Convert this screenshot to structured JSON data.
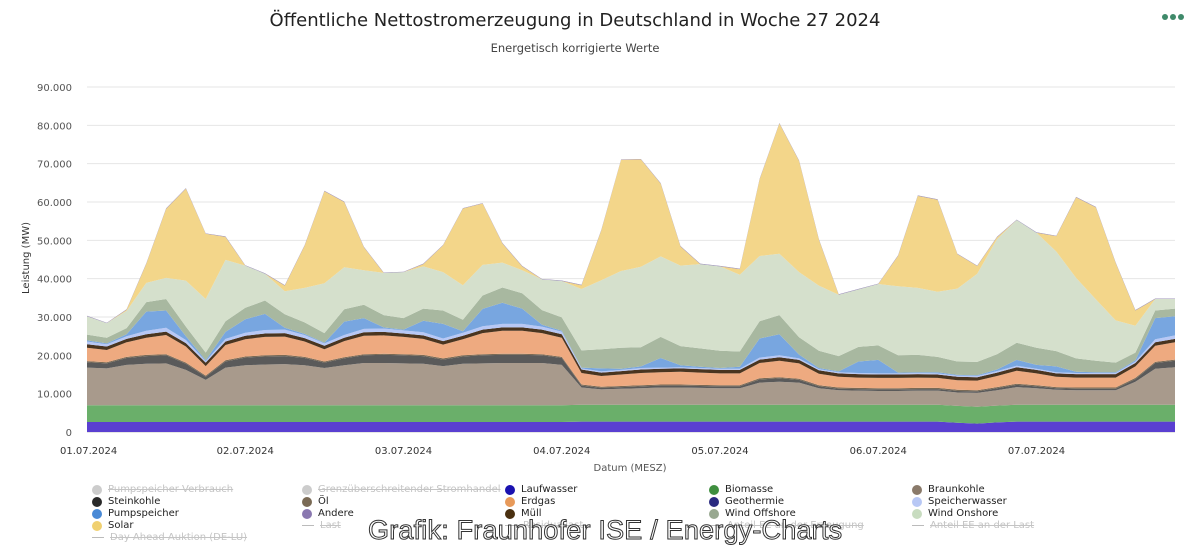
{
  "header": {
    "title": "Öffentliche Nettostromerzeugung in Deutschland in Woche 27 2024",
    "subtitle": "Energetisch korrigierte Werte",
    "menu_icon": "more-dots-icon"
  },
  "watermark": "Grafik: Fraunhofer ISE / Energy-Charts",
  "chart_data": {
    "type": "area",
    "stacked": true,
    "title": "Öffentliche Nettostromerzeugung in Deutschland in Woche 27 2024",
    "subtitle": "Energetisch korrigierte Werte",
    "xlabel": "Datum (MESZ)",
    "ylabel": "Leistung (MW)",
    "ylim": [
      0,
      90000
    ],
    "yticks": [
      0,
      10000,
      20000,
      30000,
      40000,
      50000,
      60000,
      70000,
      80000,
      90000
    ],
    "ytick_labels": [
      "0",
      "10.000",
      "20.000",
      "30.000",
      "40.000",
      "50.000",
      "60.000",
      "70.000",
      "80.000",
      "90.000"
    ],
    "x_unit": "hours since 01.07.2024 00:00",
    "xlim": [
      0,
      165
    ],
    "xticks": [
      0,
      24,
      48,
      72,
      96,
      120,
      144
    ],
    "xtick_labels": [
      "01.07.2024",
      "02.07.2024",
      "03.07.2024",
      "04.07.2024",
      "05.07.2024",
      "06.07.2024",
      "07.07.2024"
    ],
    "grid": true,
    "legend_position": "bottom",
    "x": [
      0,
      3,
      6,
      9,
      12,
      15,
      18,
      21,
      24,
      27,
      30,
      33,
      36,
      39,
      42,
      45,
      48,
      51,
      54,
      57,
      60,
      63,
      66,
      69,
      72,
      75,
      78,
      81,
      84,
      87,
      90,
      93,
      96,
      99,
      102,
      105,
      108,
      111,
      114,
      117,
      120,
      123,
      126,
      129,
      132,
      135,
      138,
      141,
      144,
      147,
      150,
      153,
      156,
      159,
      162,
      165
    ],
    "series": [
      {
        "name": "Laufwasser",
        "color": "#5a3fd1",
        "values": [
          2600,
          2600,
          2600,
          2600,
          2600,
          2600,
          2600,
          2600,
          2600,
          2600,
          2600,
          2600,
          2600,
          2600,
          2600,
          2600,
          2600,
          2600,
          2600,
          2600,
          2600,
          2600,
          2600,
          2600,
          2600,
          2700,
          2700,
          2700,
          2700,
          2700,
          2700,
          2700,
          2700,
          2700,
          2700,
          2700,
          2700,
          2700,
          2700,
          2700,
          2700,
          2700,
          2700,
          2700,
          2400,
          2200,
          2500,
          2700,
          2700,
          2700,
          2700,
          2700,
          2700,
          2700,
          2700,
          2700
        ]
      },
      {
        "name": "Biomasse",
        "color": "#6aaf6a",
        "values": [
          4400,
          4400,
          4400,
          4400,
          4400,
          4400,
          4400,
          4400,
          4400,
          4400,
          4400,
          4400,
          4400,
          4400,
          4400,
          4400,
          4400,
          4400,
          4400,
          4400,
          4400,
          4400,
          4400,
          4400,
          4400,
          4400,
          4400,
          4400,
          4400,
          4400,
          4400,
          4400,
          4400,
          4400,
          4400,
          4400,
          4400,
          4400,
          4400,
          4400,
          4400,
          4400,
          4400,
          4400,
          4400,
          4400,
          4400,
          4400,
          4400,
          4400,
          4400,
          4400,
          4400,
          4400,
          4400,
          4400
        ]
      },
      {
        "name": "Braunkohle",
        "color": "#a89a8c",
        "values": [
          9800,
          9600,
          10500,
          10800,
          10900,
          9200,
          6600,
          9800,
          10400,
          10600,
          10700,
          10400,
          9700,
          10400,
          11000,
          11000,
          10900,
          10800,
          10200,
          10800,
          10900,
          11000,
          11000,
          11000,
          10500,
          4500,
          4000,
          4200,
          4300,
          4500,
          4500,
          4400,
          4300,
          4300,
          5800,
          6000,
          5800,
          4300,
          3800,
          3700,
          3600,
          3600,
          3700,
          3700,
          3500,
          3600,
          4000,
          4600,
          4300,
          3900,
          3800,
          3800,
          3800,
          6000,
          9400,
          9800
        ]
      },
      {
        "name": "Steinkohle",
        "color": "#5a5a5a",
        "values": [
          1400,
          1300,
          1800,
          2000,
          2100,
          1600,
          800,
          1600,
          2000,
          2100,
          2100,
          1900,
          1400,
          1800,
          2000,
          2100,
          2100,
          2000,
          1700,
          1900,
          2100,
          2100,
          2100,
          2000,
          1800,
          500,
          400,
          400,
          500,
          500,
          500,
          500,
          500,
          500,
          800,
          900,
          700,
          500,
          400,
          400,
          400,
          400,
          400,
          400,
          400,
          400,
          500,
          600,
          500,
          400,
          400,
          400,
          400,
          700,
          1500,
          1700
        ]
      },
      {
        "name": "Öl",
        "color": "#7a6a55",
        "values": [
          300,
          300,
          300,
          300,
          300,
          300,
          300,
          300,
          300,
          300,
          300,
          300,
          300,
          300,
          300,
          300,
          300,
          300,
          300,
          300,
          300,
          300,
          300,
          300,
          300,
          300,
          300,
          300,
          300,
          300,
          300,
          300,
          300,
          300,
          300,
          300,
          300,
          300,
          300,
          300,
          300,
          300,
          300,
          300,
          300,
          300,
          300,
          300,
          300,
          300,
          300,
          300,
          300,
          300,
          300,
          300
        ]
      },
      {
        "name": "Erdgas",
        "color": "#eeaa80",
        "values": [
          3500,
          3200,
          3800,
          4500,
          5000,
          4200,
          2500,
          4000,
          4500,
          4800,
          4800,
          4000,
          3200,
          4200,
          4800,
          4800,
          4500,
          4200,
          3600,
          4200,
          5500,
          6000,
          6000,
          5500,
          5000,
          3000,
          2800,
          3000,
          3200,
          3200,
          3300,
          3200,
          3100,
          3100,
          4000,
          4300,
          4000,
          3000,
          2800,
          2700,
          2700,
          2700,
          2700,
          2600,
          2500,
          2500,
          2900,
          3400,
          3100,
          2700,
          2600,
          2600,
          2600,
          3000,
          4200,
          4500
        ]
      },
      {
        "name": "Müll",
        "color": "#4a3520",
        "values": [
          900,
          900,
          900,
          900,
          900,
          900,
          900,
          900,
          900,
          900,
          900,
          900,
          900,
          900,
          900,
          900,
          900,
          900,
          900,
          900,
          900,
          900,
          900,
          900,
          900,
          900,
          900,
          900,
          900,
          900,
          900,
          900,
          900,
          900,
          900,
          900,
          900,
          900,
          900,
          900,
          900,
          900,
          900,
          900,
          900,
          900,
          900,
          900,
          900,
          900,
          900,
          900,
          900,
          900,
          900,
          900
        ]
      },
      {
        "name": "Speicherwasser",
        "color": "#b8c8f5",
        "values": [
          700,
          600,
          700,
          900,
          1000,
          800,
          400,
          700,
          800,
          900,
          900,
          800,
          600,
          700,
          900,
          900,
          800,
          800,
          700,
          800,
          900,
          900,
          900,
          800,
          700,
          300,
          300,
          300,
          400,
          300,
          300,
          300,
          300,
          300,
          500,
          500,
          400,
          300,
          300,
          300,
          300,
          300,
          300,
          300,
          300,
          300,
          400,
          400,
          300,
          300,
          300,
          300,
          300,
          400,
          800,
          900
        ]
      },
      {
        "name": "Pumpspeicher",
        "color": "#78a6e0",
        "values": [
          300,
          200,
          500,
          5000,
          4500,
          1000,
          200,
          1800,
          3500,
          4200,
          500,
          300,
          200,
          3500,
          2800,
          300,
          200,
          3000,
          3800,
          400,
          4500,
          5500,
          4000,
          500,
          200,
          200,
          800,
          300,
          400,
          2500,
          500,
          300,
          200,
          500,
          5000,
          5500,
          1000,
          300,
          200,
          3000,
          3500,
          200,
          200,
          300,
          200,
          200,
          400,
          1500,
          1000,
          1500,
          300,
          200,
          200,
          300,
          5500,
          5000
        ]
      },
      {
        "name": "Wind Offshore",
        "color": "#a8b8a0",
        "values": [
          1500,
          1500,
          1600,
          2500,
          3000,
          2500,
          2000,
          2800,
          3000,
          3500,
          3500,
          3000,
          2500,
          3200,
          3500,
          3200,
          3000,
          3200,
          3500,
          3000,
          3500,
          4000,
          4000,
          3800,
          3500,
          4500,
          5000,
          5500,
          5000,
          5500,
          5000,
          4800,
          4500,
          4000,
          4500,
          5000,
          4500,
          4500,
          4000,
          3800,
          3800,
          4500,
          4500,
          4000,
          3500,
          3500,
          4000,
          4500,
          4500,
          4000,
          3500,
          3000,
          2500,
          2000,
          2000,
          2000
        ]
      },
      {
        "name": "Wind Onshore",
        "color": "#d5e0cc",
        "values": [
          4800,
          3800,
          4500,
          5000,
          5500,
          12000,
          14000,
          16000,
          11000,
          7000,
          6000,
          9000,
          13000,
          11000,
          9000,
          11000,
          12000,
          11000,
          10000,
          9000,
          8000,
          6500,
          6000,
          8000,
          9500,
          16000,
          18000,
          20000,
          21000,
          21000,
          21000,
          22000,
          22000,
          20000,
          17000,
          16000,
          17000,
          17000,
          16000,
          15000,
          16000,
          18000,
          17500,
          17000,
          19000,
          23000,
          30000,
          32000,
          30000,
          26000,
          21000,
          16000,
          11000,
          7000,
          3000,
          2500
        ]
      },
      {
        "name": "Solar",
        "color": "#f3d68a",
        "values": [
          0,
          0,
          300,
          5000,
          18000,
          24000,
          17000,
          6000,
          0,
          0,
          1500,
          11000,
          24000,
          17000,
          6000,
          0,
          0,
          600,
          7000,
          20000,
          16000,
          5000,
          1000,
          0,
          0,
          1000,
          13000,
          29000,
          28000,
          19000,
          5000,
          0,
          0,
          1500,
          20000,
          34000,
          29000,
          12000,
          0,
          0,
          0,
          8000,
          24000,
          24000,
          9000,
          2000,
          500,
          0,
          0,
          4000,
          21000,
          24000,
          15000,
          4000,
          0,
          0
        ]
      },
      {
        "name": "Geothermie",
        "color": "#3b3580",
        "values": [
          20,
          20,
          20,
          20,
          20,
          20,
          20,
          20,
          20,
          20,
          20,
          20,
          20,
          20,
          20,
          20,
          20,
          20,
          20,
          20,
          20,
          20,
          20,
          20,
          20,
          20,
          20,
          20,
          20,
          20,
          20,
          20,
          20,
          20,
          20,
          20,
          20,
          20,
          20,
          20,
          20,
          20,
          20,
          20,
          20,
          20,
          20,
          20,
          20,
          20,
          20,
          20,
          20,
          20,
          20,
          20
        ]
      },
      {
        "name": "Andere",
        "color": "#9080b0",
        "values": [
          100,
          100,
          100,
          100,
          100,
          100,
          100,
          100,
          100,
          100,
          100,
          100,
          100,
          100,
          100,
          100,
          100,
          100,
          100,
          100,
          100,
          100,
          100,
          100,
          100,
          100,
          100,
          100,
          100,
          100,
          100,
          100,
          100,
          100,
          100,
          100,
          100,
          100,
          100,
          100,
          100,
          100,
          100,
          100,
          100,
          100,
          100,
          100,
          100,
          100,
          100,
          100,
          100,
          100,
          100,
          100
        ]
      }
    ]
  },
  "legend": {
    "items": [
      {
        "label": "Pumpspeicher Verbrauch",
        "color": "#cccccc",
        "kind": "dot",
        "hidden": true
      },
      {
        "label": "Grenzüberschreitender Stromhandel",
        "color": "#cccccc",
        "kind": "dot",
        "hidden": true
      },
      {
        "label": "Laufwasser",
        "color": "#1a12b0",
        "kind": "dot",
        "hidden": false
      },
      {
        "label": "Biomasse",
        "color": "#3f8f3f",
        "kind": "dot",
        "hidden": false
      },
      {
        "label": "Braunkohle",
        "color": "#8a7a6a",
        "kind": "dot",
        "hidden": false
      },
      {
        "label": "Steinkohle",
        "color": "#2a2a2a",
        "kind": "dot",
        "hidden": false
      },
      {
        "label": "Öl",
        "color": "#7a6a55",
        "kind": "dot",
        "hidden": false
      },
      {
        "label": "Erdgas",
        "color": "#e89a5a",
        "kind": "dot",
        "hidden": false
      },
      {
        "label": "Geothermie",
        "color": "#2a2a80",
        "kind": "dot",
        "hidden": false
      },
      {
        "label": "Speicherwasser",
        "color": "#b8c8f5",
        "kind": "dot",
        "hidden": false
      },
      {
        "label": "Pumpspeicher",
        "color": "#4a8ad6",
        "kind": "dot",
        "hidden": false
      },
      {
        "label": "Andere",
        "color": "#8a78b0",
        "kind": "dot",
        "hidden": false
      },
      {
        "label": "Müll",
        "color": "#4a3010",
        "kind": "dot",
        "hidden": false
      },
      {
        "label": "Wind Offshore",
        "color": "#98a890",
        "kind": "dot",
        "hidden": false
      },
      {
        "label": "Wind Onshore",
        "color": "#c8dcc0",
        "kind": "dot",
        "hidden": false
      },
      {
        "label": "Solar",
        "color": "#f0d070",
        "kind": "dot",
        "hidden": false
      },
      {
        "label": "Last",
        "color": "#bbbbbb",
        "kind": "line",
        "hidden": true
      },
      {
        "label": "Residuallast",
        "color": "#bbbbbb",
        "kind": "line",
        "hidden": true
      },
      {
        "label": "Anteil EE an der Erzeugung",
        "color": "#bbbbbb",
        "kind": "line",
        "hidden": true
      },
      {
        "label": "Anteil EE an der Last",
        "color": "#bbbbbb",
        "kind": "line",
        "hidden": true
      },
      {
        "label": "Day Ahead Auktion (DE-LU)",
        "color": "#bbbbbb",
        "kind": "line",
        "hidden": true
      }
    ]
  }
}
